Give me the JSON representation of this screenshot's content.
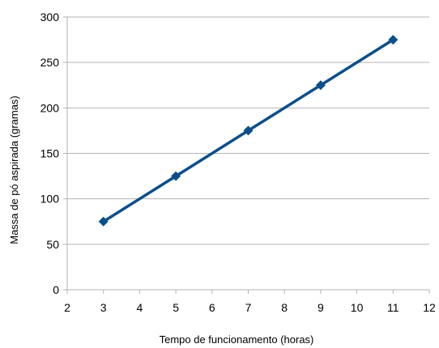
{
  "chart_data": {
    "type": "line",
    "xlabel": "Tempo de funcionamento (horas)",
    "ylabel": "Massa de pó aspirada (gramas)",
    "xlim": [
      2,
      12
    ],
    "ylim": [
      0,
      300
    ],
    "x_ticks": [
      2,
      3,
      4,
      5,
      6,
      7,
      8,
      9,
      10,
      11,
      12
    ],
    "y_ticks": [
      0,
      50,
      100,
      150,
      200,
      250,
      300
    ],
    "grid": "horizontal",
    "legend": "none",
    "marker": "diamond",
    "series": [
      {
        "color": "#0b4f8a",
        "points": [
          {
            "x": 3,
            "y": 75
          },
          {
            "x": 5,
            "y": 125
          },
          {
            "x": 7,
            "y": 175
          },
          {
            "x": 9,
            "y": 225
          },
          {
            "x": 11,
            "y": 275
          }
        ]
      }
    ]
  }
}
